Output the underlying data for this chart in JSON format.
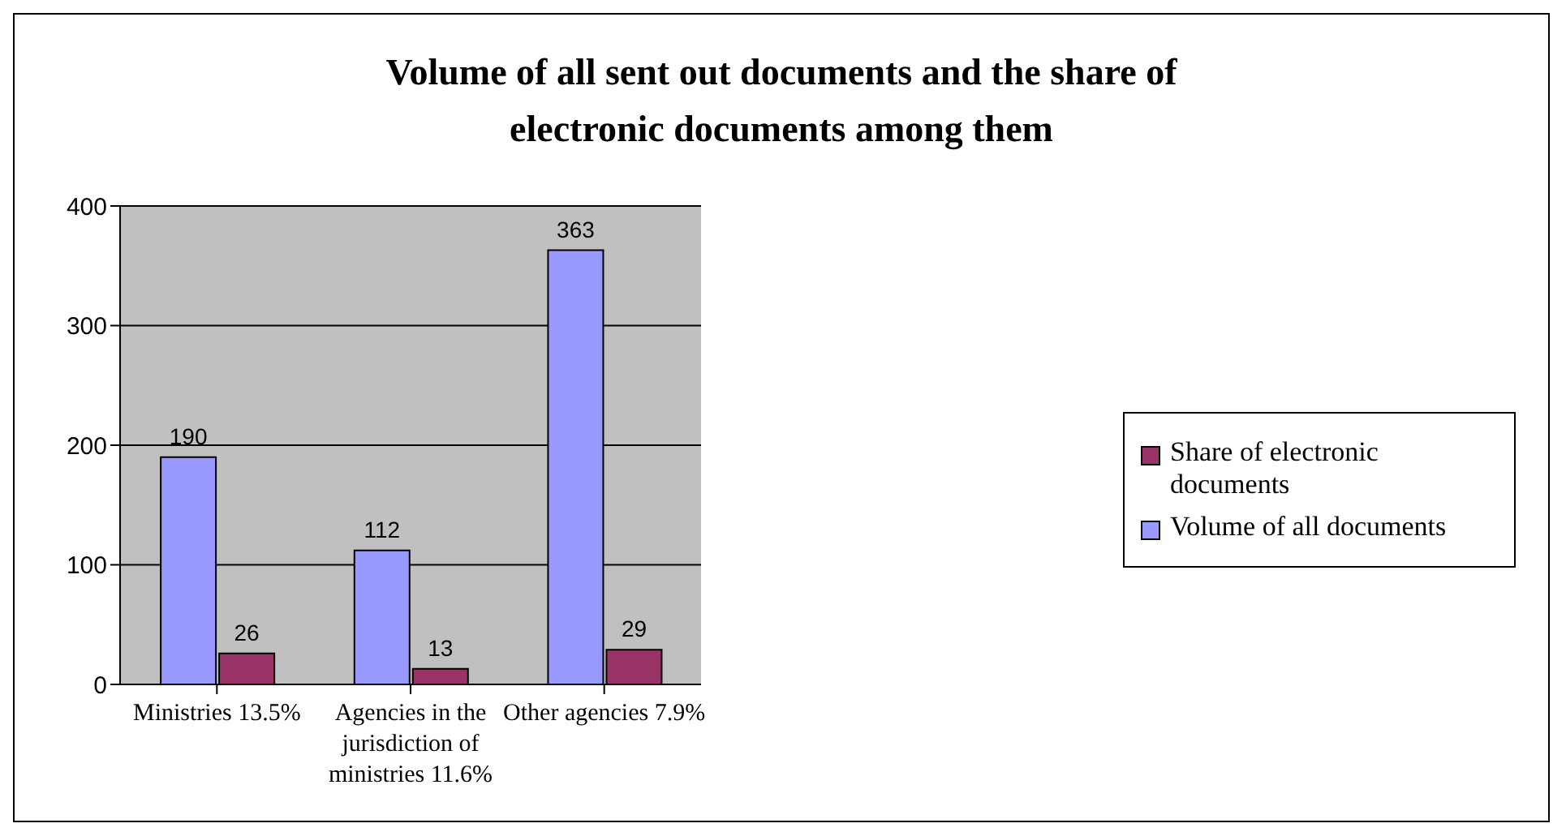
{
  "chart_data": {
    "type": "bar",
    "title": "Volume of all sent out documents and the share of electronic documents among them",
    "categories": [
      "Ministries  13.5%",
      "Agencies in the jurisdiction of ministries 11.6%",
      "Other agencies 7.9%"
    ],
    "series": [
      {
        "name": "Volume of all documents",
        "color": "#9999ff",
        "values": [
          190,
          112,
          363
        ]
      },
      {
        "name": "Share of electronic documents",
        "color": "#993366",
        "values": [
          26,
          13,
          29
        ]
      }
    ],
    "ylim": [
      0,
      400
    ],
    "yticks": [
      0,
      100,
      200,
      300,
      400
    ],
    "grid": "y",
    "legend": "right",
    "data_labels": true
  }
}
